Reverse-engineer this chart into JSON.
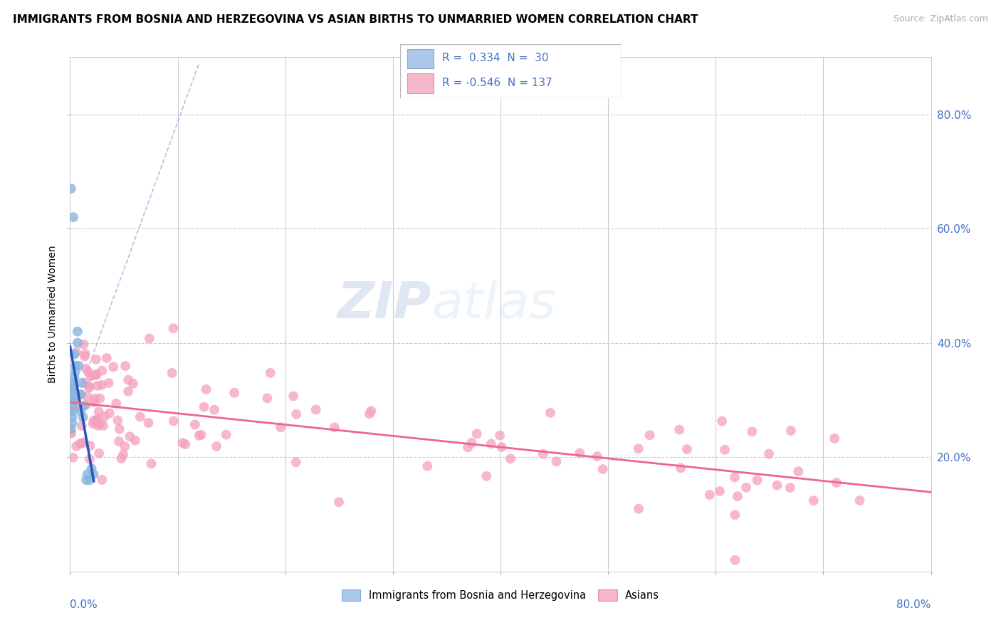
{
  "title": "IMMIGRANTS FROM BOSNIA AND HERZEGOVINA VS ASIAN BIRTHS TO UNMARRIED WOMEN CORRELATION CHART",
  "source": "Source: ZipAtlas.com",
  "ylabel": "Births to Unmarried Women",
  "legend1_r": "0.334",
  "legend1_n": "30",
  "legend2_r": "-0.546",
  "legend2_n": "137",
  "legend1_color": "#adc6eb",
  "legend2_color": "#f5b8cb",
  "scatter1_color": "#8ab4de",
  "scatter2_color": "#f5a0bc",
  "line1_color": "#2255bb",
  "line2_color": "#ee6688",
  "dash_color": "#99bbdd",
  "bottom_legend1": "Immigrants from Bosnia and Herzegovina",
  "bottom_legend2": "Asians",
  "watermark_zip": "ZIP",
  "watermark_atlas": "atlas",
  "xlim": [
    0.0,
    0.8
  ],
  "ylim": [
    0.0,
    0.9
  ],
  "ytick_vals": [
    0.2,
    0.4,
    0.6,
    0.8
  ],
  "ytick_labels": [
    "20.0%",
    "40.0%",
    "60.0%",
    "80.0%"
  ],
  "right_label_color": "#4472c4",
  "grid_color": "#cccccc",
  "title_fontsize": 11,
  "source_fontsize": 9,
  "axis_label_fontsize": 10,
  "tick_fontsize": 11
}
